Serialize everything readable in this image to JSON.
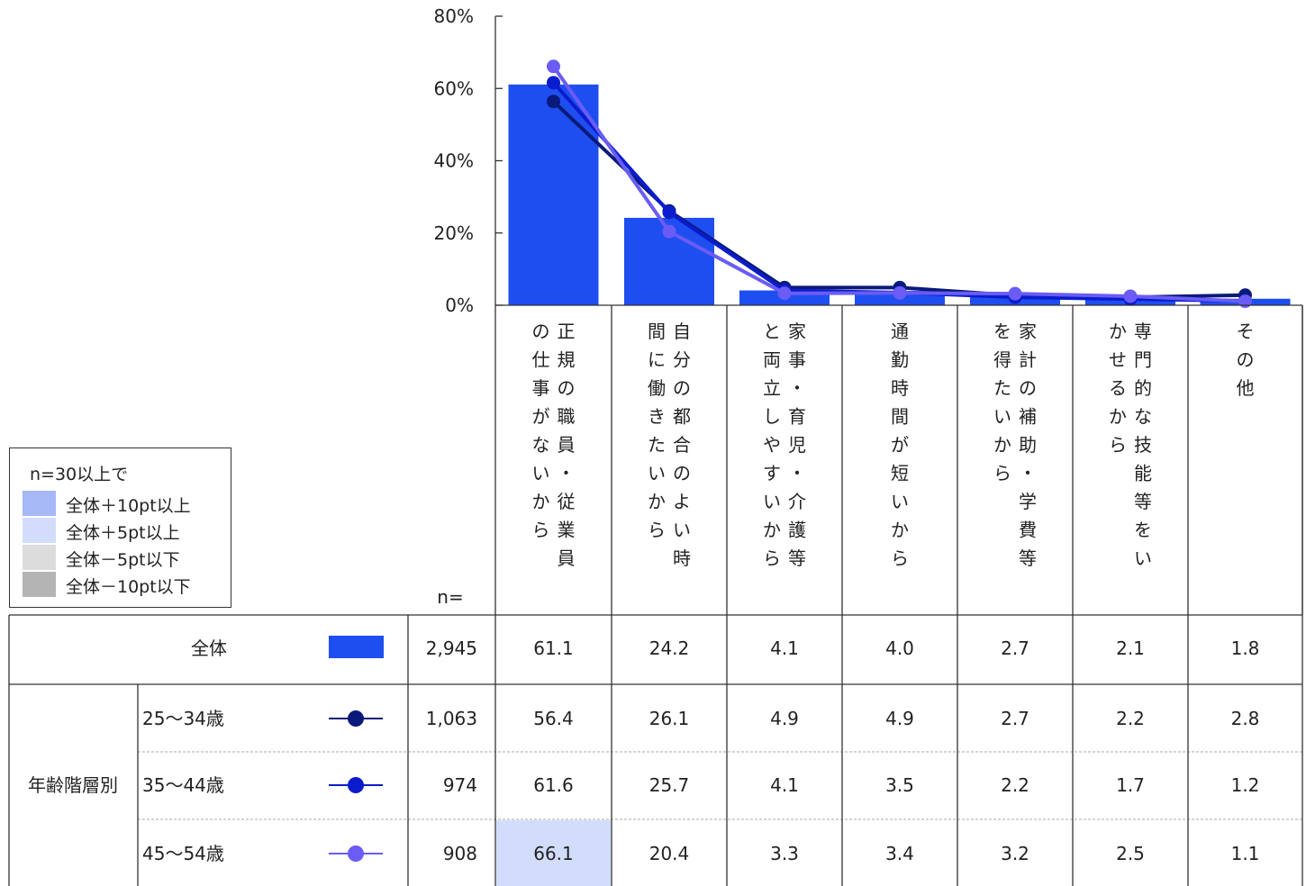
{
  "legend": {
    "title": "n=30以上で",
    "items": [
      {
        "label": "全体＋10pt以上",
        "color": "#a6b8f6"
      },
      {
        "label": "全体＋5pt以上",
        "color": "#d2ddfb"
      },
      {
        "label": "全体－5pt以下",
        "color": "#dcdcdc"
      },
      {
        "label": "全体－10pt以下",
        "color": "#b4b4b4"
      }
    ]
  },
  "table": {
    "n_header": "n=",
    "group_label": "年齢階層別"
  },
  "chart_data": {
    "type": "bar",
    "title": "",
    "ylim": [
      0,
      80
    ],
    "yticks": [
      "0%",
      "20%",
      "40%",
      "60%",
      "80%"
    ],
    "categories": [
      "正規の職員・従業員の仕事がないから",
      "自分の都合のよい時間に働きたいから",
      "家事・育児・介護等と両立しやすいから",
      "通勤時間が短いから",
      "家計の補助・学費等を得たいから",
      "専門的な技能等をいかせるから",
      "その他"
    ],
    "series": [
      {
        "name": "全体",
        "type": "bar",
        "color": "#1f4ef0",
        "n": "2,945",
        "values": [
          61.1,
          24.2,
          4.1,
          4.0,
          2.7,
          2.1,
          1.8
        ],
        "labels": [
          "61.1",
          "24.2",
          "4.1",
          "4.0",
          "2.7",
          "2.1",
          "1.8"
        ]
      },
      {
        "name": "25～34歳",
        "type": "line",
        "color": "#0a1a7a",
        "n": "1,063",
        "values": [
          56.4,
          26.1,
          4.9,
          4.9,
          2.7,
          2.2,
          2.8
        ],
        "labels": [
          "56.4",
          "26.1",
          "4.9",
          "4.9",
          "2.7",
          "2.2",
          "2.8"
        ]
      },
      {
        "name": "35～44歳",
        "type": "line",
        "color": "#0b1ccc",
        "n": "974",
        "values": [
          61.6,
          25.7,
          4.1,
          3.5,
          2.2,
          1.7,
          1.2
        ],
        "labels": [
          "61.6",
          "25.7",
          "4.1",
          "3.5",
          "2.2",
          "1.7",
          "1.2"
        ]
      },
      {
        "name": "45～54歳",
        "type": "line",
        "color": "#6a5cf5",
        "n": "908",
        "values": [
          66.1,
          20.4,
          3.3,
          3.4,
          3.2,
          2.5,
          1.1
        ],
        "labels": [
          "66.1",
          "20.4",
          "3.3",
          "3.4",
          "3.2",
          "2.5",
          "1.1"
        ],
        "highlight": [
          1,
          0,
          0,
          0,
          0,
          0,
          0
        ]
      }
    ]
  }
}
